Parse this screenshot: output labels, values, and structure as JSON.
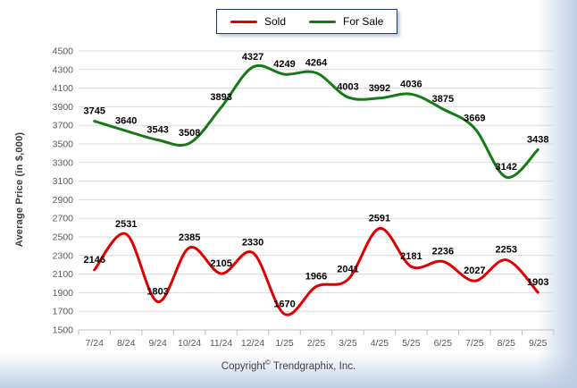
{
  "chart_data": {
    "type": "line",
    "title": "",
    "ylabel": "Average Price (in $,000)",
    "xlabel": "",
    "categories": [
      "7/24",
      "8/24",
      "9/24",
      "10/24",
      "11/24",
      "12/24",
      "1/25",
      "2/25",
      "3/25",
      "4/25",
      "5/25",
      "6/25",
      "7/25",
      "8/25",
      "9/25"
    ],
    "series": [
      {
        "name": "Sold",
        "color": "#e00000",
        "values": [
          2146,
          2531,
          1803,
          2385,
          2105,
          2330,
          1670,
          1966,
          2041,
          2591,
          2181,
          2236,
          2027,
          2253,
          1903
        ]
      },
      {
        "name": "For Sale",
        "color": "#157a15",
        "values": [
          3745,
          3640,
          3543,
          3508,
          3893,
          4327,
          4249,
          4264,
          4003,
          3992,
          4036,
          3875,
          3669,
          3142,
          3438
        ]
      }
    ],
    "ylim": [
      1500,
      4500
    ],
    "ytick_step": 200,
    "grid": true,
    "legend_position": "top-center",
    "smoothing": "spline"
  },
  "footer": {
    "copyright_prefix": "Copyright",
    "copyright_symbol": "©",
    "copyright_owner": "Trendgraphix, Inc."
  }
}
